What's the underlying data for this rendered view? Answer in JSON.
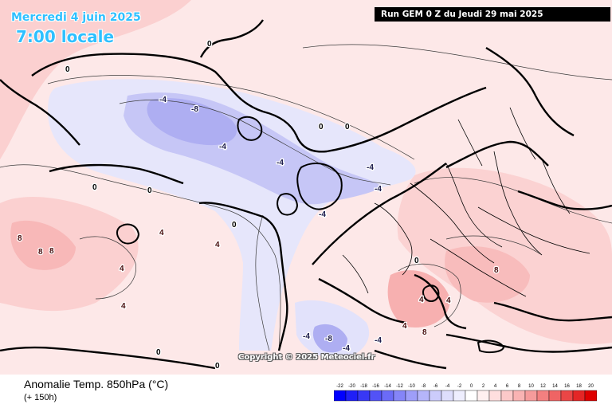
{
  "map": {
    "valid_date": "Mercredi 4 juin 2025",
    "valid_time": "7:00 locale",
    "run_info": "Run GEM 0 Z du Jeudi 29 mai 2025",
    "copyright": "Copyright © 2025 Meteociel.fr",
    "variable": "Anomalie Temp. 850hPa (°C)",
    "lead_time": "(+ 150h)",
    "anomaly_centers": [
      {
        "value": "-8",
        "tone": "cold"
      },
      {
        "value": "-4",
        "tone": "cold"
      },
      {
        "value": "-4",
        "tone": "cold"
      },
      {
        "value": "-4",
        "tone": "cold"
      },
      {
        "value": "-4",
        "tone": "cold"
      },
      {
        "value": "-4",
        "tone": "cold"
      },
      {
        "value": "-4",
        "tone": "cold"
      },
      {
        "value": "-8",
        "tone": "cold"
      },
      {
        "value": "-4",
        "tone": "cold"
      },
      {
        "value": "-4",
        "tone": "cold"
      },
      {
        "value": "-4",
        "tone": "cold"
      },
      {
        "value": "8",
        "tone": "warm"
      },
      {
        "value": "8",
        "tone": "warm"
      },
      {
        "value": "8",
        "tone": "warm"
      },
      {
        "value": "4",
        "tone": "warm"
      },
      {
        "value": "4",
        "tone": "warm"
      },
      {
        "value": "4",
        "tone": "warm"
      },
      {
        "value": "4",
        "tone": "warm"
      },
      {
        "value": "4",
        "tone": "warm"
      },
      {
        "value": "8",
        "tone": "warm"
      },
      {
        "value": "8",
        "tone": "warm"
      },
      {
        "value": "4",
        "tone": "warm"
      },
      {
        "value": "4",
        "tone": "warm"
      },
      {
        "value": "0",
        "tone": "neutral"
      },
      {
        "value": "0",
        "tone": "neutral"
      },
      {
        "value": "0",
        "tone": "neutral"
      },
      {
        "value": "0",
        "tone": "neutral"
      },
      {
        "value": "0",
        "tone": "neutral"
      },
      {
        "value": "0",
        "tone": "neutral"
      },
      {
        "value": "0",
        "tone": "neutral"
      },
      {
        "value": "0",
        "tone": "neutral"
      },
      {
        "value": "0",
        "tone": "neutral"
      },
      {
        "value": "0",
        "tone": "neutral"
      }
    ],
    "legend": {
      "labels": [
        "-22",
        "-20",
        "-18",
        "-16",
        "-14",
        "-12",
        "-10",
        "-8",
        "-6",
        "-4",
        "-2",
        "0",
        "2",
        "4",
        "6",
        "8",
        "10",
        "12",
        "14",
        "16",
        "18",
        "20"
      ],
      "colors": [
        "#0000ff",
        "#1f1ff7",
        "#3838f5",
        "#5252f6",
        "#6b6bf7",
        "#8585f8",
        "#9e9ef9",
        "#b5b5fa",
        "#ccccfb",
        "#dedefc",
        "#eeeefe",
        "#ffffff",
        "#fff0f0",
        "#ffdede",
        "#fcc9c9",
        "#f9b3b3",
        "#f69b9b",
        "#f38080",
        "#ef6464",
        "#ea4646",
        "#e42626",
        "#de0000"
      ]
    }
  }
}
